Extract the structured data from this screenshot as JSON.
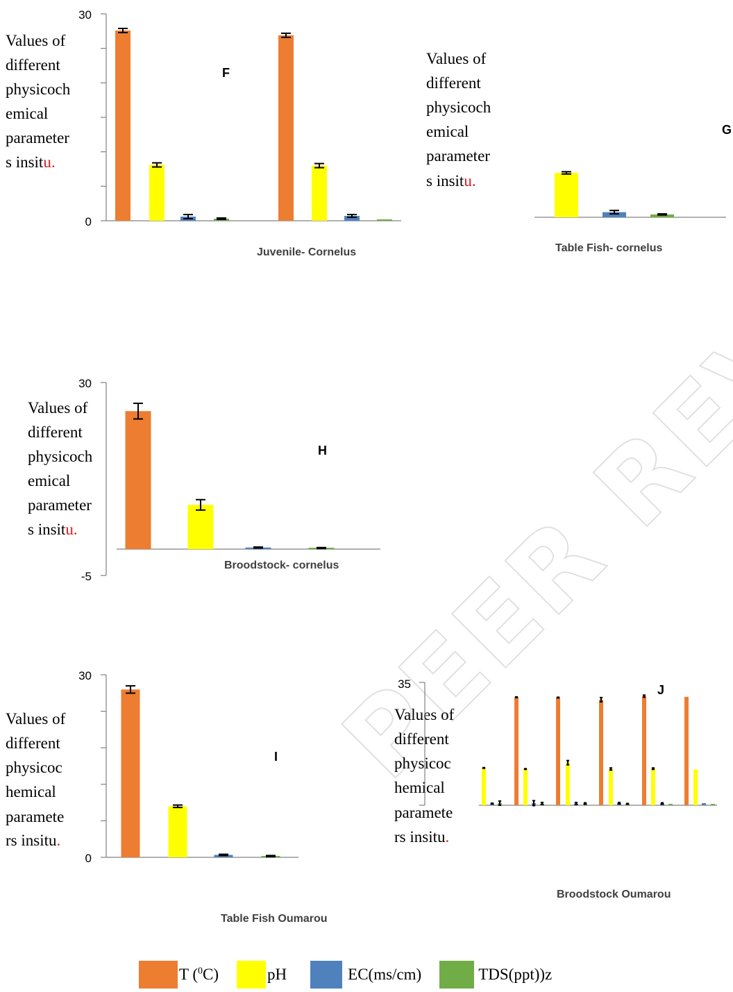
{
  "colors": {
    "T": "#ed7d31",
    "pH": "#ffff00",
    "EC": "#4f81bd",
    "TDS": "#70ad47"
  },
  "legend": {
    "items": [
      {
        "key": "T",
        "text_before": "T (",
        "sup": "0",
        "text_after": "C)"
      },
      {
        "key": "pH",
        "text": "pH"
      },
      {
        "key": "EC",
        "text": "EC(ms/cm)"
      },
      {
        "key": "TDS",
        "text": "TDS(ppt))z"
      }
    ]
  },
  "chart_data": [
    {
      "panel": "F",
      "type": "bar",
      "xlabel": {
        "plain": "Juvenile- ",
        "strong": "Cornelus"
      },
      "ylabel": {
        "lines": [
          "Values of",
          "different",
          "physicoch",
          "emical",
          "parameter",
          "s insit"
        ],
        "red_suffix": "u."
      },
      "yticks_shown": [
        "30",
        "0"
      ],
      "ylim": [
        0,
        30
      ],
      "series_order": [
        "T",
        "pH",
        "EC",
        "TDS"
      ],
      "groups": [
        {
          "values": [
            27.6,
            8.1,
            0.6,
            0.3
          ],
          "errors": [
            0.3,
            0.3,
            0.3,
            0.1
          ]
        },
        {
          "values": [
            26.9,
            8.0,
            0.7,
            0.2
          ],
          "errors": [
            0.3,
            0.3,
            0.2,
            0.0
          ]
        }
      ]
    },
    {
      "panel": "G",
      "type": "bar",
      "xlabel": {
        "plain": "Table Fish- ",
        "strong": "cornelus"
      },
      "ylabel": {
        "lines": [
          "Values of",
          "different",
          "physicoch",
          "emical",
          "parameter",
          "s insit"
        ],
        "red_suffix": "u."
      },
      "series_order": [
        "T",
        "pH",
        "EC",
        "TDS"
      ],
      "groups": [
        {
          "values": [
            null,
            7.8,
            0.9,
            0.5
          ],
          "errors": [
            null,
            0.2,
            0.3,
            0.1
          ]
        }
      ]
    },
    {
      "panel": "H",
      "type": "bar",
      "xlabel": {
        "plain": "Broodstock- ",
        "strong": "cornelus"
      },
      "ylabel": {
        "lines": [
          "Values of",
          "different",
          "physicoch",
          "emical",
          "parameter",
          "s insit"
        ],
        "red_suffix": "u."
      },
      "yticks_shown": [
        "30",
        "-5"
      ],
      "ylim": [
        -5,
        30
      ],
      "series_order": [
        "T",
        "pH",
        "EC",
        "TDS"
      ],
      "groups": [
        {
          "values": [
            26.5,
            8.5,
            0.3,
            0.2
          ],
          "errors": [
            1.5,
            1.0,
            0.1,
            0.1
          ]
        }
      ]
    },
    {
      "panel": "I",
      "type": "bar",
      "xlabel": {
        "plain": "Table Fish ",
        "strong": "Oumarou"
      },
      "ylabel": {
        "lines": [
          "Values of",
          "different",
          "physicoc",
          "hemical",
          "paramete",
          "rs insitu"
        ],
        "red_suffix": "."
      },
      "yticks_shown": [
        "30",
        "0"
      ],
      "ylim": [
        0,
        30
      ],
      "series_order": [
        "T",
        "pH",
        "EC",
        "TDS"
      ],
      "groups": [
        {
          "values": [
            27.6,
            8.4,
            0.4,
            0.2
          ],
          "errors": [
            0.6,
            0.2,
            0.1,
            0.1
          ]
        }
      ]
    },
    {
      "panel": "J",
      "type": "bar",
      "xlabel": {
        "plain": "Broodstock ",
        "strong": "Oumarou"
      },
      "ylabel": {
        "lines": [
          "Values of",
          "different",
          "physicoc",
          "hemical",
          "paramete",
          "rs insitu"
        ],
        "red_suffix": "."
      },
      "yticks_shown": [
        "35"
      ],
      "ylim": [
        0,
        35
      ],
      "series_order": [
        "T",
        "pH",
        "EC",
        "TDS"
      ],
      "groups": [
        {
          "values": [
            null,
            10.6,
            0.5,
            0.6
          ],
          "errors": [
            null,
            0.1,
            0.1,
            0.6
          ]
        },
        {
          "values": [
            30.7,
            10.3,
            0.6,
            0.5
          ],
          "errors": [
            0.1,
            0.1,
            0.7,
            0.3
          ]
        },
        {
          "values": [
            30.6,
            12.1,
            0.5,
            0.5
          ],
          "errors": [
            0.1,
            0.6,
            0.3,
            0.2
          ]
        },
        {
          "values": [
            30.0,
            10.3,
            0.6,
            0.4
          ],
          "errors": [
            0.6,
            0.3,
            0.2,
            0.1
          ]
        },
        {
          "values": [
            31.0,
            10.4,
            0.5,
            0.2
          ],
          "errors": [
            0.3,
            0.2,
            0.2,
            0.0
          ]
        },
        {
          "values": [
            30.8,
            10.2,
            0.6,
            0.2
          ],
          "errors": [
            0.0,
            0.0,
            0.0,
            0.0
          ]
        }
      ]
    }
  ]
}
